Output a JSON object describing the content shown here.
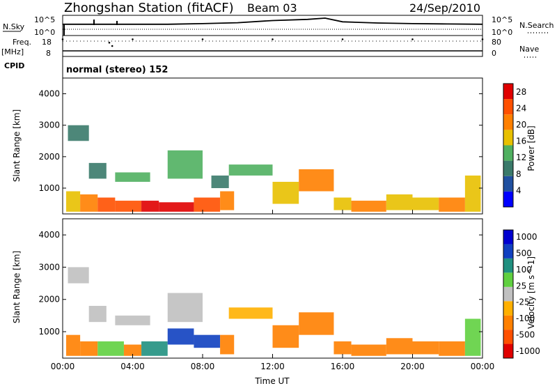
{
  "header": {
    "station": "Zhongshan Station (fitACF)",
    "beam": "Beam 03",
    "date": "24/Sep/2010"
  },
  "strip_labels": {
    "nsky": "N.Sky",
    "nsearch": "N.Search",
    "freq": "Freq.",
    "freq_unit": "[MHz]",
    "nave": "Nave",
    "cpid": "CPID",
    "cpid_value": "normal (stereo) 152",
    "nsky_ticks": [
      "10^5",
      "10^0"
    ],
    "nsearch_ticks": [
      "10^5",
      "10^0"
    ],
    "freq_ticks": [
      "18",
      "8"
    ],
    "nave_ticks": [
      "80",
      "0"
    ]
  },
  "colors": {
    "power_scale": [
      "#0000ff",
      "#2050a0",
      "#3a7a6a",
      "#50b060",
      "#e8c000",
      "#ff8000",
      "#ff5000",
      "#e00000"
    ],
    "velocity_scale": [
      "#e00000",
      "#ff5000",
      "#ff8000",
      "#ffb000",
      "#c0c0c0",
      "#60d040",
      "#209080",
      "#1040c0",
      "#0000d0"
    ]
  },
  "chart_data": [
    {
      "type": "line",
      "title": "",
      "xlabel": "",
      "ylabel": "N.Sky",
      "x": [
        "00:00",
        "02:00",
        "04:00",
        "06:00",
        "08:00",
        "10:00",
        "12:00",
        "14:00",
        "15:00",
        "16:00",
        "18:00",
        "20:00",
        "22:00",
        "24:00"
      ],
      "series": [
        {
          "name": "N.Sky",
          "values": [
            3,
            3,
            3,
            3,
            3.2,
            3.5,
            4.2,
            4.6,
            5.0,
            3.8,
            3.4,
            3.2,
            3.1,
            3.0
          ]
        }
      ],
      "ylim": [
        0,
        5
      ],
      "grid": false
    },
    {
      "type": "scatter",
      "title": "",
      "xlabel": "",
      "ylabel": "Freq. [MHz]",
      "x": [
        "00:00",
        "02:40",
        "02:50",
        "04:00",
        "08:00",
        "12:00",
        "16:00",
        "20:00",
        "24:00"
      ],
      "series": [
        {
          "name": "Freq.",
          "values": [
            17,
            15,
            13,
            17,
            17,
            17,
            17,
            17,
            17
          ]
        }
      ],
      "ylim": [
        8,
        18
      ],
      "grid": false
    },
    {
      "type": "heatmap",
      "title": "",
      "xlabel": "",
      "ylabel": "Slant Range [km]",
      "xlim": [
        0,
        24
      ],
      "ylim": [
        180,
        4500
      ],
      "x_ticks": [
        "00:00",
        "04:00",
        "08:00",
        "12:00",
        "16:00",
        "20:00",
        "00:00"
      ],
      "y_ticks": [
        "1000",
        "2000",
        "3000",
        "4000"
      ],
      "colorbar": {
        "label": "Power [dB]",
        "ticks": [
          "4",
          "8",
          "12",
          "16",
          "20",
          "24",
          "28"
        ],
        "range": [
          0,
          30
        ]
      },
      "cells": [
        [
          0.2,
          1.0,
          250,
          900,
          18
        ],
        [
          1.0,
          2.0,
          250,
          800,
          22
        ],
        [
          2.0,
          3.0,
          250,
          700,
          24
        ],
        [
          3.0,
          4.5,
          250,
          600,
          26
        ],
        [
          4.5,
          5.5,
          250,
          600,
          28
        ],
        [
          5.5,
          7.5,
          250,
          550,
          30
        ],
        [
          7.5,
          9.0,
          250,
          700,
          26
        ],
        [
          9.0,
          9.8,
          300,
          900,
          20
        ],
        [
          0.3,
          1.5,
          2500,
          3000,
          8
        ],
        [
          1.5,
          2.5,
          1300,
          1800,
          10
        ],
        [
          3.0,
          5.0,
          1200,
          1500,
          12
        ],
        [
          6.0,
          8.0,
          1300,
          2200,
          12
        ],
        [
          8.5,
          9.5,
          1000,
          1400,
          10
        ],
        [
          9.5,
          12.0,
          1400,
          1750,
          12
        ],
        [
          12.0,
          13.5,
          500,
          1200,
          16
        ],
        [
          13.5,
          15.5,
          900,
          1600,
          20
        ],
        [
          15.5,
          16.5,
          300,
          700,
          18
        ],
        [
          16.5,
          18.5,
          250,
          600,
          22
        ],
        [
          18.5,
          20.0,
          300,
          800,
          16
        ],
        [
          20.0,
          21.5,
          300,
          700,
          18
        ],
        [
          21.5,
          23.0,
          250,
          700,
          20
        ],
        [
          23.0,
          23.9,
          250,
          1400,
          16
        ]
      ]
    },
    {
      "type": "heatmap",
      "title": "",
      "xlabel": "Time UT",
      "ylabel": "Slant Range [km]",
      "xlim": [
        0,
        24
      ],
      "ylim": [
        180,
        4500
      ],
      "x_ticks": [
        "00:00",
        "04:00",
        "08:00",
        "12:00",
        "16:00",
        "20:00",
        "00:00"
      ],
      "y_ticks": [
        "1000",
        "2000",
        "3000",
        "4000"
      ],
      "colorbar": {
        "label": "Velocity [m s^-1]",
        "ticks": [
          "1000",
          "500",
          "100",
          "25",
          "-25",
          "-100",
          "-500",
          "-1000"
        ],
        "range": [
          -1000,
          1000
        ]
      },
      "cells": [
        [
          0.2,
          1.0,
          250,
          900,
          -300
        ],
        [
          1.0,
          2.0,
          250,
          700,
          -200
        ],
        [
          2.0,
          3.5,
          250,
          700,
          100
        ],
        [
          3.5,
          4.5,
          250,
          600,
          -150
        ],
        [
          4.5,
          6.0,
          250,
          700,
          200
        ],
        [
          6.0,
          7.5,
          600,
          1100,
          800
        ],
        [
          7.5,
          9.0,
          500,
          900,
          900
        ],
        [
          9.0,
          9.8,
          300,
          900,
          -200
        ],
        [
          0.3,
          1.5,
          2500,
          3000,
          0
        ],
        [
          1.5,
          2.5,
          1300,
          1800,
          0
        ],
        [
          3.0,
          5.0,
          1200,
          1500,
          0
        ],
        [
          6.0,
          8.0,
          1300,
          2200,
          0
        ],
        [
          9.5,
          12.0,
          1400,
          1750,
          -60
        ],
        [
          12.0,
          13.5,
          500,
          1200,
          -400
        ],
        [
          13.5,
          15.5,
          900,
          1600,
          -200
        ],
        [
          15.5,
          16.5,
          300,
          700,
          -400
        ],
        [
          16.5,
          18.5,
          250,
          600,
          -300
        ],
        [
          18.5,
          20.0,
          300,
          800,
          -150
        ],
        [
          20.0,
          21.5,
          300,
          700,
          -250
        ],
        [
          21.5,
          23.0,
          250,
          700,
          -150
        ],
        [
          23.0,
          23.9,
          250,
          1400,
          50
        ]
      ]
    }
  ]
}
